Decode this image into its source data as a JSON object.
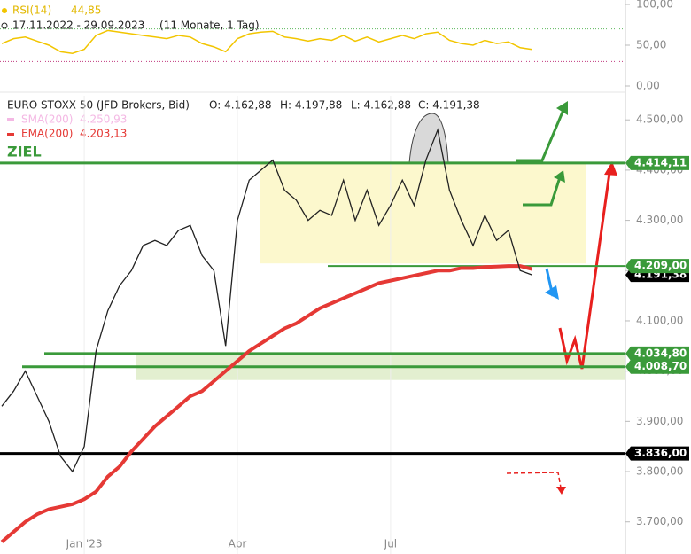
{
  "chart_data": [
    {
      "type": "line",
      "date_range": "17.11.2022 - 29.09.2023",
      "period": "(11 Monate, 1 Tag)",
      "series": [
        {
          "name": "RSI(14)",
          "color": "#f2c500",
          "legend_value": {
            "value": 44.85,
            "label": "44,85"
          },
          "values": [
            52,
            58,
            60,
            55,
            50,
            42,
            40,
            45,
            62,
            68,
            66,
            64,
            62,
            60,
            58,
            62,
            60,
            52,
            48,
            42,
            58,
            64,
            66,
            67,
            60,
            58,
            55,
            58,
            56,
            62,
            55,
            60,
            54,
            58,
            62,
            58,
            64,
            66,
            56,
            52,
            50,
            56,
            52,
            54,
            47,
            44.85
          ]
        }
      ],
      "ref_lines": [
        {
          "value": 70,
          "color": "#5cb85c"
        },
        {
          "value": 30,
          "color": "#c0397f"
        }
      ],
      "ylim": [
        0,
        100
      ],
      "yticks": [
        {
          "value": 100,
          "label": "100,00"
        },
        {
          "value": 50,
          "label": "50,00"
        },
        {
          "value": 0,
          "label": "0,00"
        }
      ]
    },
    {
      "type": "line",
      "ohlc": [
        "O: 4.162,88",
        "H: 4.197,88",
        "L: 4.162,88",
        "C: 4.191,38"
      ],
      "categories": [
        null,
        null,
        null,
        null,
        null,
        null,
        null,
        "Jan '23",
        null,
        null,
        null,
        null,
        null,
        null,
        null,
        null,
        null,
        null,
        null,
        null,
        "Apr",
        null,
        null,
        null,
        null,
        null,
        null,
        null,
        null,
        null,
        null,
        null,
        null,
        "Jul",
        null,
        null,
        null,
        null,
        null,
        null,
        null,
        null,
        null,
        null,
        null,
        null
      ],
      "series": [
        {
          "name": "EURO STOXX 50 (JFD Brokers, Bid)",
          "color": "#222222",
          "values": [
            3930,
            3960,
            4000,
            3950,
            3900,
            3830,
            3800,
            3850,
            4040,
            4120,
            4170,
            4200,
            4250,
            4260,
            4250,
            4280,
            4290,
            4230,
            4200,
            4050,
            4300,
            4380,
            4400,
            4420,
            4360,
            4340,
            4300,
            4320,
            4310,
            4380,
            4300,
            4360,
            4290,
            4330,
            4380,
            4330,
            4420,
            4480,
            4360,
            4300,
            4250,
            4310,
            4260,
            4280,
            4200,
            4191.38
          ]
        },
        {
          "name": "EMA(200)",
          "color": "#e53935",
          "legend_value": {
            "value": 4203.13,
            "label": "4.203,13"
          },
          "values": [
            3660,
            3680,
            3700,
            3715,
            3725,
            3730,
            3735,
            3745,
            3760,
            3790,
            3810,
            3840,
            3865,
            3890,
            3910,
            3930,
            3950,
            3960,
            3980,
            4000,
            4020,
            4040,
            4055,
            4070,
            4085,
            4095,
            4110,
            4125,
            4135,
            4145,
            4155,
            4165,
            4175,
            4180,
            4185,
            4190,
            4195,
            4200,
            4200,
            4205,
            4205,
            4207,
            4208,
            4209,
            4209,
            4203.13
          ]
        }
      ],
      "legend_only": [
        {
          "name": "SMA(200)",
          "color": "#f4b8e4",
          "value": 4250.93,
          "label": "4.250,93"
        }
      ],
      "annotation": "ZIEL",
      "levels": [
        {
          "value": 4414.11,
          "label": "4.414,11",
          "color": "#3a9a3a"
        },
        {
          "value": 4209.0,
          "label": "4.209,00",
          "color": "#3a9a3a"
        },
        {
          "value": 4034.8,
          "label": "4.034,80",
          "color": "#3a9a3a"
        },
        {
          "value": 4008.7,
          "label": "4.008,70",
          "color": "#3a9a3a"
        },
        {
          "value": 3836.0,
          "label": "3.836,00",
          "color": "#000000"
        },
        {
          "value": 4191.38,
          "label": "4.191,38",
          "color": "#000000"
        }
      ],
      "ylim": [
        3636,
        4548
      ],
      "yticks": [
        {
          "value": 3700,
          "label": "3.700,00"
        },
        {
          "value": 3800,
          "label": "3.800,00"
        },
        {
          "value": 3900,
          "label": "3.900,00"
        },
        {
          "value": 4000,
          "label": "4.000,00"
        },
        {
          "value": 4100,
          "label": "4.100,00"
        },
        {
          "value": 4200,
          "label": "4.200,00"
        },
        {
          "value": 4300,
          "label": "4.300,00"
        },
        {
          "value": 4400,
          "label": "4.400,00"
        },
        {
          "value": 4500,
          "label": "4.500,00"
        }
      ]
    }
  ]
}
